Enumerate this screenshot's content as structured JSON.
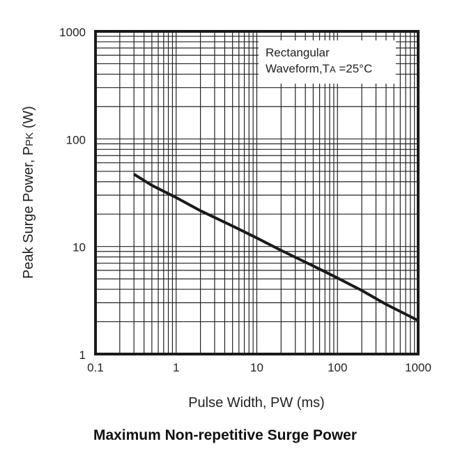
{
  "chart_data": {
    "type": "line",
    "title": "Maximum Non-repetitive Surge Power",
    "xlabel": "Pulse Width, PW (ms)",
    "ylabel_main": "Peak Surge Power, P",
    "ylabel_sub": "PK",
    "ylabel_unit": " (W)",
    "xscale": "log",
    "yscale": "log",
    "xlim": [
      0.1,
      1000
    ],
    "ylim": [
      1,
      1000
    ],
    "grid": true,
    "x_ticks": [
      "0.1",
      "1",
      "10",
      "100",
      "1000"
    ],
    "y_ticks": [
      "1",
      "10",
      "100",
      "1000"
    ],
    "legend": {
      "placement": "top-right",
      "line1": "Rectangular",
      "line2_prefix": "Waveform,T",
      "line2_sub": "A",
      "line2_suffix": " =25°C"
    },
    "series": [
      {
        "x": [
          0.3,
          0.5,
          1,
          2,
          5,
          10,
          20,
          50,
          100,
          200,
          400,
          1000
        ],
        "y": [
          47,
          37,
          28.5,
          21.5,
          15.5,
          12,
          9.2,
          6.6,
          5.1,
          3.9,
          2.9,
          2.05
        ],
        "color": "#1a1a1a"
      }
    ]
  }
}
